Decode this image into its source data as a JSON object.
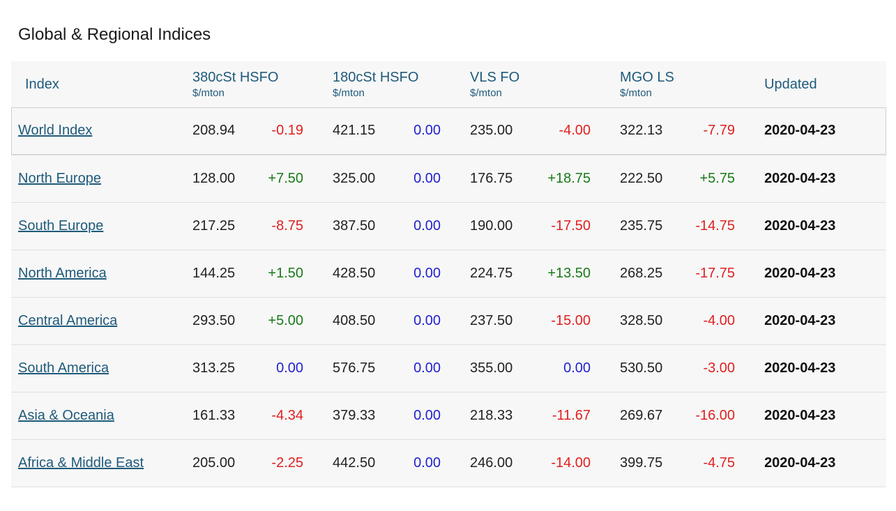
{
  "title": "Global & Regional Indices",
  "headers": {
    "index": "Index",
    "hsfo380": "380cSt HSFO",
    "hsfo180": "180cSt HSFO",
    "vlsfo": "VLS FO",
    "mgols": "MGO LS",
    "unit": "$/mton",
    "updated": "Updated"
  },
  "colors": {
    "positive": "#1a7a1a",
    "negative": "#e02020",
    "zero": "#2222cc",
    "link": "#1f5a7a"
  },
  "rows": [
    {
      "name": "World Index",
      "h380": "208.94",
      "h380c": "-0.19",
      "h180": "421.15",
      "h180c": "0.00",
      "vls": "235.00",
      "vlsc": "-4.00",
      "mgo": "322.13",
      "mgoc": "-7.79",
      "date": "2020-04-23"
    },
    {
      "name": "North Europe",
      "h380": "128.00",
      "h380c": "+7.50",
      "h180": "325.00",
      "h180c": "0.00",
      "vls": "176.75",
      "vlsc": "+18.75",
      "mgo": "222.50",
      "mgoc": "+5.75",
      "date": "2020-04-23"
    },
    {
      "name": "South Europe",
      "h380": "217.25",
      "h380c": "-8.75",
      "h180": "387.50",
      "h180c": "0.00",
      "vls": "190.00",
      "vlsc": "-17.50",
      "mgo": "235.75",
      "mgoc": "-14.75",
      "date": "2020-04-23"
    },
    {
      "name": "North America",
      "h380": "144.25",
      "h380c": "+1.50",
      "h180": "428.50",
      "h180c": "0.00",
      "vls": "224.75",
      "vlsc": "+13.50",
      "mgo": "268.25",
      "mgoc": "-17.75",
      "date": "2020-04-23"
    },
    {
      "name": "Central America",
      "h380": "293.50",
      "h380c": "+5.00",
      "h180": "408.50",
      "h180c": "0.00",
      "vls": "237.50",
      "vlsc": "-15.00",
      "mgo": "328.50",
      "mgoc": "-4.00",
      "date": "2020-04-23"
    },
    {
      "name": "South America",
      "h380": "313.25",
      "h380c": "0.00",
      "h180": "576.75",
      "h180c": "0.00",
      "vls": "355.00",
      "vlsc": "0.00",
      "mgo": "530.50",
      "mgoc": "-3.00",
      "date": "2020-04-23"
    },
    {
      "name": "Asia & Oceania",
      "h380": "161.33",
      "h380c": "-4.34",
      "h180": "379.33",
      "h180c": "0.00",
      "vls": "218.33",
      "vlsc": "-11.67",
      "mgo": "269.67",
      "mgoc": "-16.00",
      "date": "2020-04-23"
    },
    {
      "name": "Africa & Middle East",
      "h380": "205.00",
      "h380c": "-2.25",
      "h180": "442.50",
      "h180c": "0.00",
      "vls": "246.00",
      "vlsc": "-14.00",
      "mgo": "399.75",
      "mgoc": "-4.75",
      "date": "2020-04-23"
    }
  ]
}
